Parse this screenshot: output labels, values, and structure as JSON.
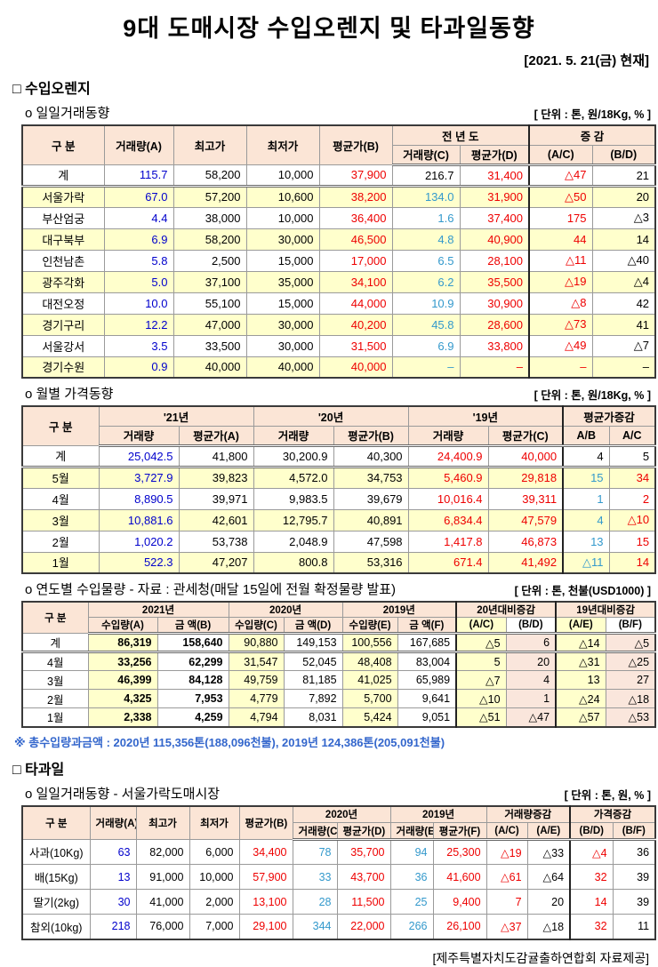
{
  "page": {
    "title": "9대 도매시장 수입오렌지 및 타과일동향",
    "date": "[2021. 5. 21(금) 현재]",
    "footer": "[제주특별자치도감귤출하연합회 자료제공]"
  },
  "colors": {
    "b": "#0000CC",
    "r": "#EE0000",
    "c": "#3399CC",
    "k": "#000000"
  },
  "orange_section": {
    "heading": "□ 수입오렌지"
  },
  "daily": {
    "heading": "o 일일거래동향",
    "unit": "[ 단위 : 톤, 원/18Kg, % ]",
    "h": {
      "gubun": "구    분",
      "vol_a": "거래량(A)",
      "high": "최고가",
      "low": "최저가",
      "avg_b": "평균가(B)",
      "prev": "전 년 도",
      "chg": "증  감",
      "vol_c": "거래량(C)",
      "avg_d": "평균가(D)",
      "ac": "(A/C)",
      "bd": "(B/D)"
    },
    "rows": [
      [
        "계",
        {
          "t": "115.7",
          "c": "b"
        },
        "58,200",
        "10,000",
        {
          "t": "37,900",
          "c": "r"
        },
        "216.7",
        {
          "t": "31,400",
          "c": "r"
        },
        {
          "t": "△47",
          "c": "r"
        },
        "21"
      ],
      [
        "서울가락",
        {
          "t": "67.0",
          "c": "b"
        },
        "57,200",
        "10,600",
        {
          "t": "38,200",
          "c": "r"
        },
        {
          "t": "134.0",
          "c": "c"
        },
        {
          "t": "31,900",
          "c": "r"
        },
        {
          "t": "△50",
          "c": "r"
        },
        "20"
      ],
      [
        "부산엄궁",
        {
          "t": "4.4",
          "c": "b"
        },
        "38,000",
        "10,000",
        {
          "t": "36,400",
          "c": "r"
        },
        {
          "t": "1.6",
          "c": "c"
        },
        {
          "t": "37,400",
          "c": "r"
        },
        {
          "t": "175",
          "c": "r"
        },
        "△3"
      ],
      [
        "대구북부",
        {
          "t": "6.9",
          "c": "b"
        },
        "58,200",
        "30,000",
        {
          "t": "46,500",
          "c": "r"
        },
        {
          "t": "4.8",
          "c": "c"
        },
        {
          "t": "40,900",
          "c": "r"
        },
        {
          "t": "44",
          "c": "r"
        },
        "14"
      ],
      [
        "인천남촌",
        {
          "t": "5.8",
          "c": "b"
        },
        "2,500",
        "15,000",
        {
          "t": "17,000",
          "c": "r"
        },
        {
          "t": "6.5",
          "c": "c"
        },
        {
          "t": "28,100",
          "c": "r"
        },
        {
          "t": "△11",
          "c": "r"
        },
        "△40"
      ],
      [
        "광주각화",
        {
          "t": "5.0",
          "c": "b"
        },
        "37,100",
        "35,000",
        {
          "t": "34,100",
          "c": "r"
        },
        {
          "t": "6.2",
          "c": "c"
        },
        {
          "t": "35,500",
          "c": "r"
        },
        {
          "t": "△19",
          "c": "r"
        },
        "△4"
      ],
      [
        "대전오정",
        {
          "t": "10.0",
          "c": "b"
        },
        "55,100",
        "15,000",
        {
          "t": "44,000",
          "c": "r"
        },
        {
          "t": "10.9",
          "c": "c"
        },
        {
          "t": "30,900",
          "c": "r"
        },
        {
          "t": "△8",
          "c": "r"
        },
        "42"
      ],
      [
        "경기구리",
        {
          "t": "12.2",
          "c": "b"
        },
        "47,000",
        "30,000",
        {
          "t": "40,200",
          "c": "r"
        },
        {
          "t": "45.8",
          "c": "c"
        },
        {
          "t": "28,600",
          "c": "r"
        },
        {
          "t": "△73",
          "c": "r"
        },
        "41"
      ],
      [
        "서울강서",
        {
          "t": "3.5",
          "c": "b"
        },
        "33,500",
        "30,000",
        {
          "t": "31,500",
          "c": "r"
        },
        {
          "t": "6.9",
          "c": "c"
        },
        {
          "t": "33,800",
          "c": "r"
        },
        {
          "t": "△49",
          "c": "r"
        },
        "△7"
      ],
      [
        "경기수원",
        {
          "t": "0.9",
          "c": "b"
        },
        "40,000",
        "40,000",
        {
          "t": "40,000",
          "c": "r"
        },
        {
          "t": "–",
          "c": "c"
        },
        {
          "t": "–",
          "c": "r"
        },
        {
          "t": "–",
          "c": "r"
        },
        "–"
      ]
    ]
  },
  "monthly": {
    "heading": "o 월별 가격동향",
    "unit": "[ 단위 : 톤, 원/18Kg, % ]",
    "h": {
      "gubun": "구    분",
      "y21": "'21년",
      "y20": "'20년",
      "y19": "'19년",
      "chg": "평균가증감",
      "vol": "거래량",
      "avg_a": "평균가(A)",
      "avg_b": "평균가(B)",
      "avg_c": "평균가(C)",
      "ab": "A/B",
      "ac": "A/C"
    },
    "rows": [
      [
        "계",
        {
          "t": "25,042.5",
          "c": "b"
        },
        "41,800",
        "30,200.9",
        "40,300",
        {
          "t": "24,400.9",
          "c": "r"
        },
        {
          "t": "40,000",
          "c": "r"
        },
        "4",
        "5"
      ],
      [
        "5월",
        {
          "t": "3,727.9",
          "c": "b"
        },
        "39,823",
        "4,572.0",
        "34,753",
        {
          "t": "5,460.9",
          "c": "r"
        },
        {
          "t": "29,818",
          "c": "r"
        },
        {
          "t": "15",
          "c": "c"
        },
        {
          "t": "34",
          "c": "r"
        }
      ],
      [
        "4월",
        {
          "t": "8,890.5",
          "c": "b"
        },
        "39,971",
        "9,983.5",
        "39,679",
        {
          "t": "10,016.4",
          "c": "r"
        },
        {
          "t": "39,311",
          "c": "r"
        },
        {
          "t": "1",
          "c": "c"
        },
        {
          "t": "2",
          "c": "r"
        }
      ],
      [
        "3월",
        {
          "t": "10,881.6",
          "c": "b"
        },
        "42,601",
        "12,795.7",
        "40,891",
        {
          "t": "6,834.4",
          "c": "r"
        },
        {
          "t": "47,579",
          "c": "r"
        },
        {
          "t": "4",
          "c": "c"
        },
        {
          "t": "△10",
          "c": "r"
        }
      ],
      [
        "2월",
        {
          "t": "1,020.2",
          "c": "b"
        },
        "53,738",
        "2,048.9",
        "47,598",
        {
          "t": "1,417.8",
          "c": "r"
        },
        {
          "t": "46,873",
          "c": "r"
        },
        {
          "t": "13",
          "c": "c"
        },
        {
          "t": "15",
          "c": "r"
        }
      ],
      [
        "1월",
        {
          "t": "522.3",
          "c": "b"
        },
        "47,207",
        "800.8",
        "53,316",
        {
          "t": "671.4",
          "c": "r"
        },
        {
          "t": "41,492",
          "c": "r"
        },
        {
          "t": "△11",
          "c": "c"
        },
        {
          "t": "14",
          "c": "r"
        }
      ]
    ]
  },
  "yearly": {
    "heading": "o 연도별 수입물량 - 자료 : 관세청(매달 15일에 전월 확정물량 발표)",
    "unit": "[ 단위 : 톤, 천불(USD1000) ]",
    "h": {
      "gubun": "구 분",
      "y2021": "2021년",
      "y2020": "2020년",
      "y2019": "2019년",
      "vs20": "20년대비증감",
      "vs19": "19년대비증감",
      "imp_a": "수입량(A)",
      "amt_b": "금  액(B)",
      "imp_c": "수입량(C)",
      "amt_d": "금  액(D)",
      "imp_e": "수입량(E)",
      "amt_f": "금  액(F)",
      "ac": "(A/C)",
      "bd": "(B/D)",
      "ae": "(A/E)",
      "bf": "(B/F)"
    },
    "rows": [
      [
        "계",
        "86,319",
        "158,640",
        "90,880",
        "149,153",
        "100,556",
        "167,685",
        "△5",
        "6",
        "△14",
        "△5"
      ],
      [
        "4월",
        "33,256",
        "62,299",
        "31,547",
        "52,045",
        "48,408",
        "83,004",
        "5",
        "20",
        "△31",
        "△25"
      ],
      [
        "3월",
        "46,399",
        "84,128",
        "49,759",
        "81,185",
        "41,025",
        "65,989",
        "△7",
        "4",
        "13",
        "27"
      ],
      [
        "2월",
        "4,325",
        "7,953",
        "4,779",
        "7,892",
        "5,700",
        "9,641",
        "△10",
        "1",
        "△24",
        "△18"
      ],
      [
        "1월",
        "2,338",
        "4,259",
        "4,794",
        "8,031",
        "5,424",
        "9,051",
        "△51",
        "△47",
        "△57",
        "△53"
      ]
    ],
    "note": "※ 총수입량과금액 : 2020년 115,356톤(188,096천불),  2019년 124,386톤(205,091천불)"
  },
  "fruit": {
    "heading": "□ 타과일",
    "daily_heading": "o 일일거래동향 - 서울가락도매시장",
    "unit": "[ 단위 : 톤, 원, % ]",
    "h": {
      "gubun": "구 분",
      "vol_a": "거래량(A)",
      "high": "최고가",
      "low": "최저가",
      "avg_b": "평균가(B)",
      "y2020": "2020년",
      "y2019": "2019년",
      "vol_chg": "거래량증감",
      "price_chg": "가격증감",
      "vol_c": "거래량(C)",
      "avg_d": "평균가(D)",
      "vol_e": "거래량(E)",
      "avg_f": "평균가(F)",
      "ac": "(A/C)",
      "ae": "(A/E)",
      "bd": "(B/D)",
      "bf": "(B/F)"
    },
    "rows": [
      [
        "사과(10Kg)",
        {
          "t": "63",
          "c": "b"
        },
        "82,000",
        "6,000",
        {
          "t": "34,400",
          "c": "r"
        },
        {
          "t": "78",
          "c": "c"
        },
        {
          "t": "35,700",
          "c": "r"
        },
        {
          "t": "94",
          "c": "c"
        },
        {
          "t": "25,300",
          "c": "r"
        },
        {
          "t": "△19",
          "c": "r"
        },
        "△33",
        {
          "t": "△4",
          "c": "r"
        },
        "36"
      ],
      [
        "배(15Kg)",
        {
          "t": "13",
          "c": "b"
        },
        "91,000",
        "10,000",
        {
          "t": "57,900",
          "c": "r"
        },
        {
          "t": "33",
          "c": "c"
        },
        {
          "t": "43,700",
          "c": "r"
        },
        {
          "t": "36",
          "c": "c"
        },
        {
          "t": "41,600",
          "c": "r"
        },
        {
          "t": "△61",
          "c": "r"
        },
        "△64",
        {
          "t": "32",
          "c": "r"
        },
        "39"
      ],
      [
        "딸기(2kg)",
        {
          "t": "30",
          "c": "b"
        },
        "41,000",
        "2,000",
        {
          "t": "13,100",
          "c": "r"
        },
        {
          "t": "28",
          "c": "c"
        },
        {
          "t": "11,500",
          "c": "r"
        },
        {
          "t": "25",
          "c": "c"
        },
        {
          "t": "9,400",
          "c": "r"
        },
        {
          "t": "7",
          "c": "r"
        },
        "20",
        {
          "t": "14",
          "c": "r"
        },
        "39"
      ],
      [
        "참외(10kg)",
        {
          "t": "218",
          "c": "b"
        },
        "76,000",
        "7,000",
        {
          "t": "29,100",
          "c": "r"
        },
        {
          "t": "344",
          "c": "c"
        },
        {
          "t": "22,000",
          "c": "r"
        },
        {
          "t": "266",
          "c": "c"
        },
        {
          "t": "26,100",
          "c": "r"
        },
        {
          "t": "△37",
          "c": "r"
        },
        "△18",
        {
          "t": "32",
          "c": "r"
        },
        "11"
      ]
    ]
  }
}
